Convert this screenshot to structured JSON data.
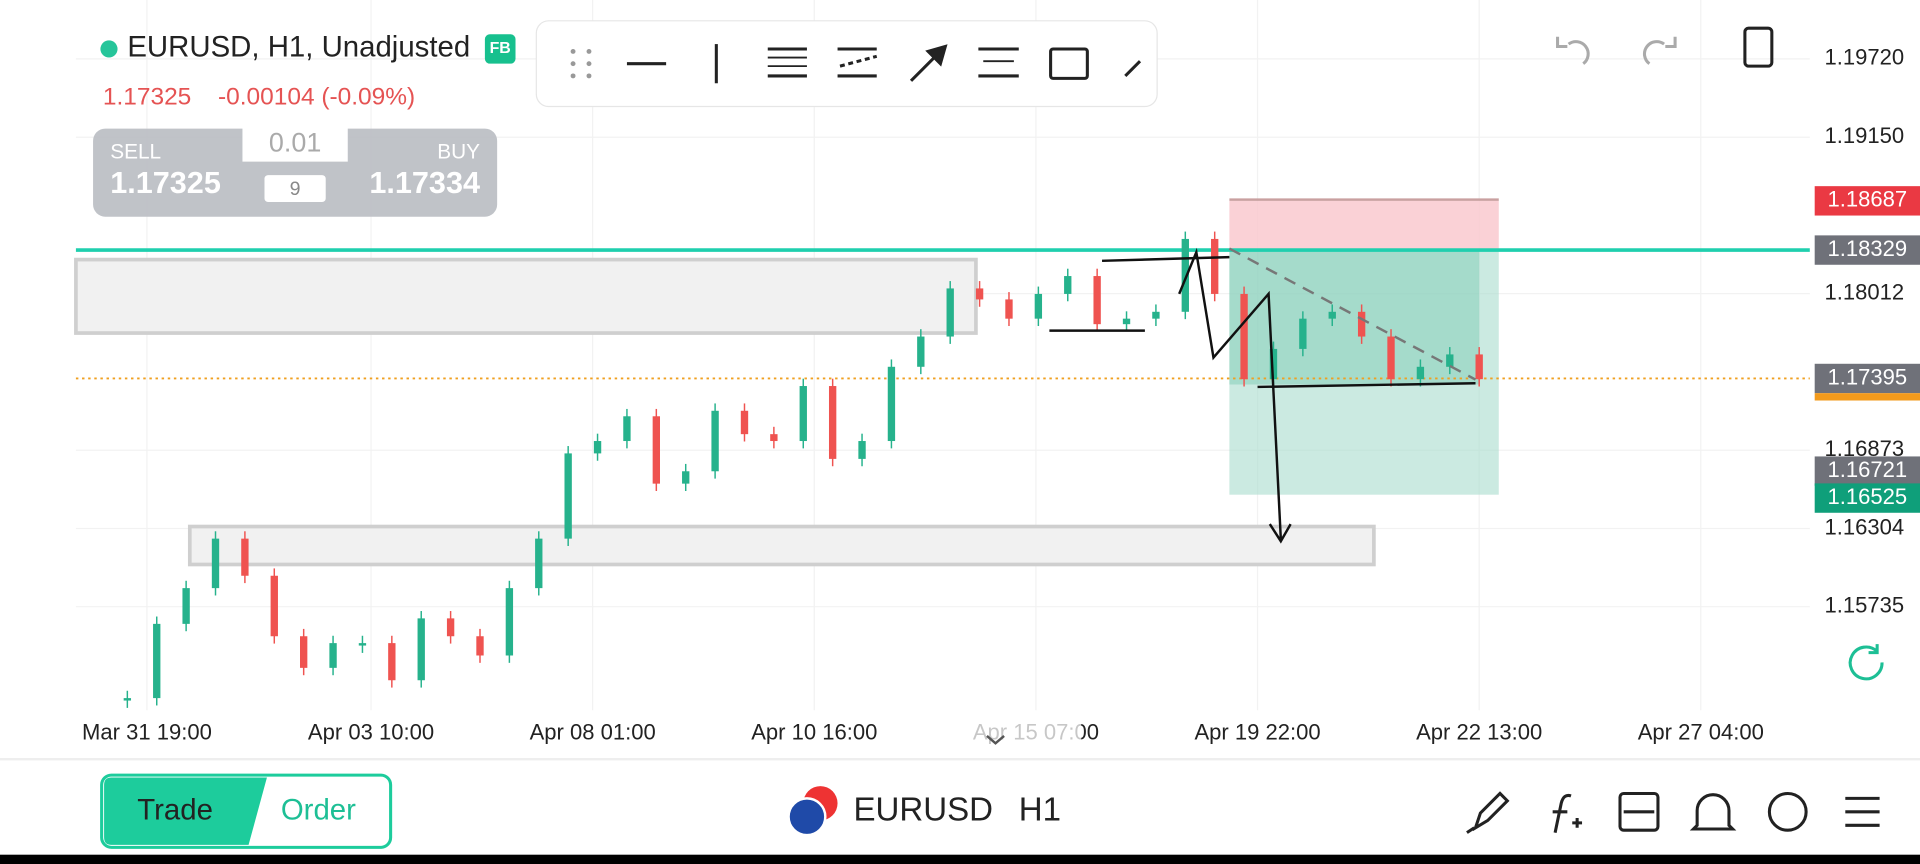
{
  "header": {
    "symbol": "EURUSD, H1, Unadjusted",
    "badge": "FB",
    "price": "1.17325",
    "change": "-0.00104 (-0.09%)"
  },
  "trade_panel": {
    "sell_label": "SELL",
    "sell_price": "1.17325",
    "lot": "0.01",
    "spread": "9",
    "buy_label": "BUY",
    "buy_price": "1.17334"
  },
  "chart_data": {
    "type": "candlestick",
    "values": [
      1.1507,
      1.1561,
      1.1587,
      1.1623,
      1.1596,
      1.1552,
      1.1529,
      1.1547,
      1.1547,
      1.152,
      1.1565,
      1.1552,
      1.1538,
      1.1587,
      1.1623,
      1.1685,
      1.1694,
      1.1712,
      1.1663,
      1.1672,
      1.1716,
      1.1699,
      1.1694,
      1.1734,
      1.1681,
      1.1694,
      1.1748,
      1.177,
      1.1805,
      1.1797,
      1.1783,
      1.1801,
      1.1814,
      1.1779,
      1.1783,
      1.1788,
      1.1841,
      1.1801,
      1.1739,
      1.1761,
      1.1783,
      1.1788,
      1.177,
      1.1739,
      1.1748,
      1.1757,
      1.1739
    ],
    "up_color": "#26b28c",
    "down_color": "#ef5350",
    "ylim": [
      1.14982,
      1.20148
    ],
    "yticks": [
      {
        "value": 1.1972,
        "label": "1.19720"
      },
      {
        "value": 1.1915,
        "label": "1.19150"
      },
      {
        "value": 1.18012,
        "label": "1.18012"
      },
      {
        "value": 1.16873,
        "label": "1.16873"
      },
      {
        "value": 1.16304,
        "label": "1.16304"
      },
      {
        "value": 1.15735,
        "label": "1.15735"
      }
    ],
    "price_levels": [
      {
        "value": 1.18687,
        "label": "1.18687",
        "color": "#ea3943"
      },
      {
        "value": 1.18329,
        "label": "1.18329",
        "color": "#6f7179"
      },
      {
        "value": 1.17395,
        "label": "1.17395",
        "color": "#6f7179"
      },
      {
        "value": 1.16721,
        "label": "1.16721",
        "color": "#6f7179"
      },
      {
        "value": 1.16525,
        "label": "1.16525",
        "color": "#0f9f7a"
      }
    ],
    "x_labels": [
      "Mar 31 19:00",
      "Apr 03 10:00",
      "Apr 08 01:00",
      "Apr 10 16:00",
      "Apr 15 07:00",
      "Apr 19 22:00",
      "Apr 22 13:00",
      "Apr 27 04:00"
    ]
  },
  "bottom_bar": {
    "tabs": [
      "Trade",
      "Order"
    ],
    "symbol": "EURUSD",
    "timeframe": "H1"
  }
}
